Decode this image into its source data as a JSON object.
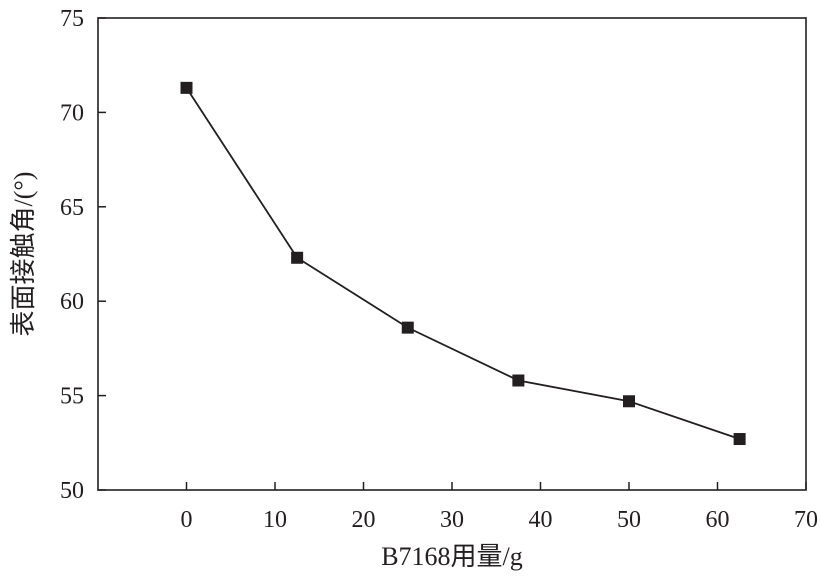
{
  "chart_data": {
    "type": "line",
    "xlabel": "B7168用量/g",
    "ylabel": "表面接触角/(°)",
    "xlim": [
      -10,
      70
    ],
    "ylim": [
      50,
      75
    ],
    "x_ticks": [
      0,
      10,
      20,
      30,
      40,
      50,
      60,
      70
    ],
    "y_ticks": [
      50,
      55,
      60,
      65,
      70,
      75
    ],
    "grid": false,
    "legend": "none",
    "marker": "square",
    "colors": {
      "line": "#231f20",
      "marker": "#231f20",
      "axis": "#231f20"
    },
    "series": [
      {
        "x": [
          0,
          12.5,
          25,
          37.5,
          50,
          62.5
        ],
        "y": [
          71.3,
          62.3,
          58.6,
          55.8,
          54.7,
          52.7
        ]
      }
    ]
  }
}
